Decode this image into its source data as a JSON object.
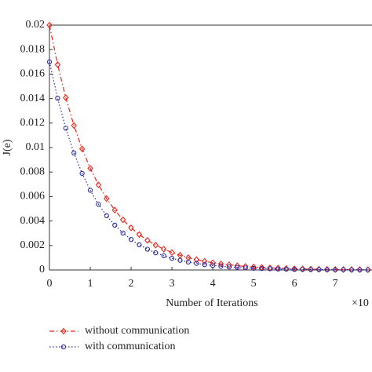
{
  "chart_data": {
    "type": "line",
    "ylabel": "J(e)",
    "xlabel": "Number of Iterations",
    "annotation": "×10",
    "x": [
      0,
      0.2,
      0.4,
      0.6,
      0.8,
      1.0,
      1.2,
      1.4,
      1.6,
      1.8,
      2.0,
      2.2,
      2.4,
      2.6,
      2.8,
      3.0,
      3.2,
      3.4,
      3.6,
      3.8,
      4.0,
      4.2,
      4.4,
      4.6,
      4.8,
      5.0,
      5.2,
      5.4,
      5.6,
      5.8,
      6.0,
      6.2,
      6.4,
      6.6,
      6.8,
      7.0,
      7.2,
      7.4,
      7.6,
      7.8
    ],
    "series": [
      {
        "name": "without communication",
        "color": "#e8281e",
        "marker": "diamond",
        "linestyle": "dashdot",
        "values": [
          0.02,
          0.01677,
          0.01407,
          0.0118,
          0.00989,
          0.0083,
          0.00696,
          0.00583,
          0.00489,
          0.0041,
          0.00344,
          0.00289,
          0.00242,
          0.00203,
          0.0017,
          0.00143,
          0.0012,
          0.001,
          0.00084,
          0.00071,
          0.00059,
          0.0005,
          0.00042,
          0.00035,
          0.00029,
          0.00025,
          0.00021,
          0.00017,
          0.00015,
          0.00012,
          0.0001,
          9e-05,
          7e-05,
          6e-05,
          5e-05,
          4e-05,
          4e-05,
          3e-05,
          3e-05,
          2e-05
        ]
      },
      {
        "name": "with communication",
        "color": "#2b2fa0",
        "marker": "circle",
        "linestyle": "dotted",
        "values": [
          0.017,
          0.01403,
          0.01158,
          0.00956,
          0.00789,
          0.00651,
          0.00537,
          0.00443,
          0.00366,
          0.00302,
          0.00249,
          0.00206,
          0.0017,
          0.0014,
          0.00116,
          0.00095,
          0.00079,
          0.00065,
          0.00054,
          0.00044,
          0.00037,
          0.0003,
          0.00025,
          0.00021,
          0.00017,
          0.00014,
          0.00012,
          0.0001,
          8e-05,
          7e-05,
          5e-05,
          5e-05,
          4e-05,
          3e-05,
          2e-05,
          2e-05,
          2e-05,
          1e-05,
          1e-05,
          1e-05
        ]
      }
    ],
    "xlim": [
      0,
      7.9
    ],
    "xticks": [
      0,
      1,
      2,
      3,
      4,
      5,
      6,
      7
    ],
    "ylim": [
      0,
      0.02
    ],
    "yticks": [
      0,
      0.002,
      0.004,
      0.006,
      0.008,
      0.01,
      0.012,
      0.014,
      0.016,
      0.018,
      0.02
    ],
    "grid": false
  }
}
